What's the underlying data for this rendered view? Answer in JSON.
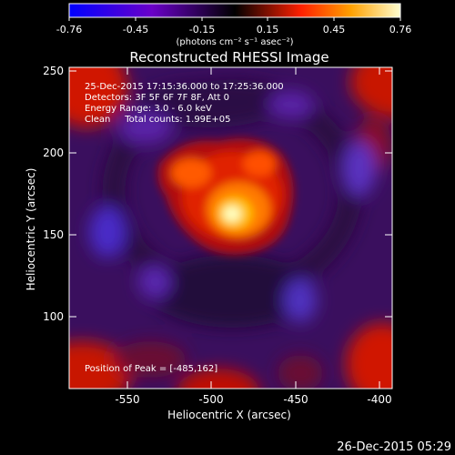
{
  "colorbar": {
    "ticks": [
      "-0.76",
      "-0.45",
      "-0.15",
      "0.15",
      "0.45",
      "0.76"
    ],
    "units": "(photons cm⁻² s⁻¹ asec⁻²)"
  },
  "title": "Reconstructed RHESSI Image",
  "annotations": [
    "25-Dec-2015 17:15:36.000 to 17:25:36.000",
    "Detectors: 3F 5F 6F 7F 8F, Att 0",
    "Energy Range: 3.0 - 6.0 keV",
    "Clean     Total counts: 1.99E+05"
  ],
  "peak_label": "Position of Peak = [-485,162]",
  "xaxis": {
    "label": "Heliocentric X (arcsec)",
    "ticks": [
      "-550",
      "-500",
      "-450",
      "-400"
    ]
  },
  "yaxis": {
    "label": "Heliocentric Y (arcsec)",
    "ticks": [
      "250",
      "200",
      "150",
      "100"
    ]
  },
  "footer_timestamp": "26-Dec-2015 05:29",
  "colors": {
    "colorbar_stops": [
      "#0000ff",
      "#7a00c8",
      "#000000",
      "#ff2000",
      "#ffb000",
      "#ffffc8"
    ]
  }
}
